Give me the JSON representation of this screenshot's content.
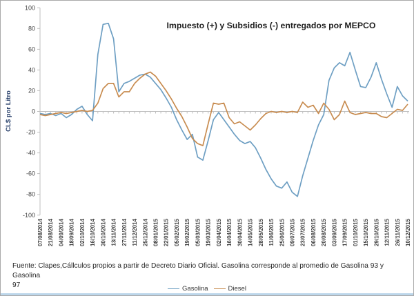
{
  "window": {
    "background": "#ffffff",
    "border_color": "#a9a9a9",
    "bottom_edge_color": "#bcd6ea"
  },
  "chart_data": {
    "type": "line",
    "title": "Impuesto (+)  y Subsidios (-) entregados por MEPCO",
    "ylabel": "CL$ por Litro",
    "xlabel": "",
    "ylim": [
      -100,
      100
    ],
    "ytick_step": 20,
    "grid": "zero-axis-line-only",
    "legend_position": "bottom-center",
    "axis_color": "#bfbfbf",
    "tick_label_color": "#404040",
    "n_points": 71,
    "points_per_label": 2,
    "x_tick_labels": [
      "07/08/2014",
      "21/08/2014",
      "04/09/2014",
      "18/09/2014",
      "02/10/2014",
      "16/10/2014",
      "30/10/2014",
      "13/11/2014",
      "27/11/2014",
      "11/12/2014",
      "25/12/2014",
      "08/01/2015",
      "22/01/2015",
      "05/02/2015",
      "19/02/2015",
      "05/03/2015",
      "19/03/2015",
      "02/04/2015",
      "16/04/2015",
      "30/04/2015",
      "14/05/2015",
      "28/05/2015",
      "11/06/2015",
      "25/06/2015",
      "09/07/2015",
      "23/07/2015",
      "06/08/2015",
      "20/08/2015",
      "03/09/2015",
      "17/09/2015",
      "01/10/2015",
      "15/10/2015",
      "29/10/2015",
      "12/11/2015",
      "26/11/2015",
      "10/12/2015"
    ],
    "series": [
      {
        "name": "Gasolina",
        "color": "#6e9fc3",
        "values": [
          -2,
          -3,
          -2,
          -4,
          -2,
          -6,
          -3,
          2,
          5,
          -3,
          -9,
          55,
          84,
          85,
          70,
          19,
          27,
          29,
          32,
          35,
          36,
          33,
          27,
          21,
          13,
          4,
          -8,
          -18,
          -27,
          -22,
          -44,
          -47,
          -28,
          -8,
          -1,
          -8,
          -15,
          -22,
          -28,
          -31,
          -29,
          -35,
          -45,
          -56,
          -65,
          -72,
          -74,
          -68,
          -78,
          -82,
          -62,
          -45,
          -28,
          -13,
          -3,
          30,
          42,
          47,
          44,
          57,
          40,
          24,
          23,
          33,
          47,
          31,
          17,
          4,
          24,
          15,
          10
        ]
      },
      {
        "name": "Diesel",
        "color": "#c88c50",
        "values": [
          -3,
          -4,
          -3,
          -2,
          -1,
          -2,
          -1,
          0,
          1,
          0,
          1,
          8,
          22,
          27,
          27,
          14,
          19,
          19,
          27,
          32,
          36,
          38,
          34,
          27,
          20,
          12,
          3,
          -5,
          -15,
          -26,
          -31,
          -33,
          -12,
          8,
          7,
          8,
          -6,
          -12,
          -10,
          -14,
          -18,
          -13,
          -7,
          -2,
          0,
          -1,
          0,
          -1,
          0,
          -1,
          9,
          4,
          6,
          -2,
          8,
          2,
          -8,
          -3,
          10,
          -1,
          -3,
          -2,
          -1,
          -2,
          -2,
          -5,
          -6,
          -2,
          2,
          1,
          7
        ]
      }
    ]
  },
  "footnote": {
    "line1": "Fuente: Clapes,Cállculos propios a partir de Decreto Diario Oficial. Gasolina corresponde al promedio de Gasolina 93 y Gasolina",
    "line2": "97"
  }
}
